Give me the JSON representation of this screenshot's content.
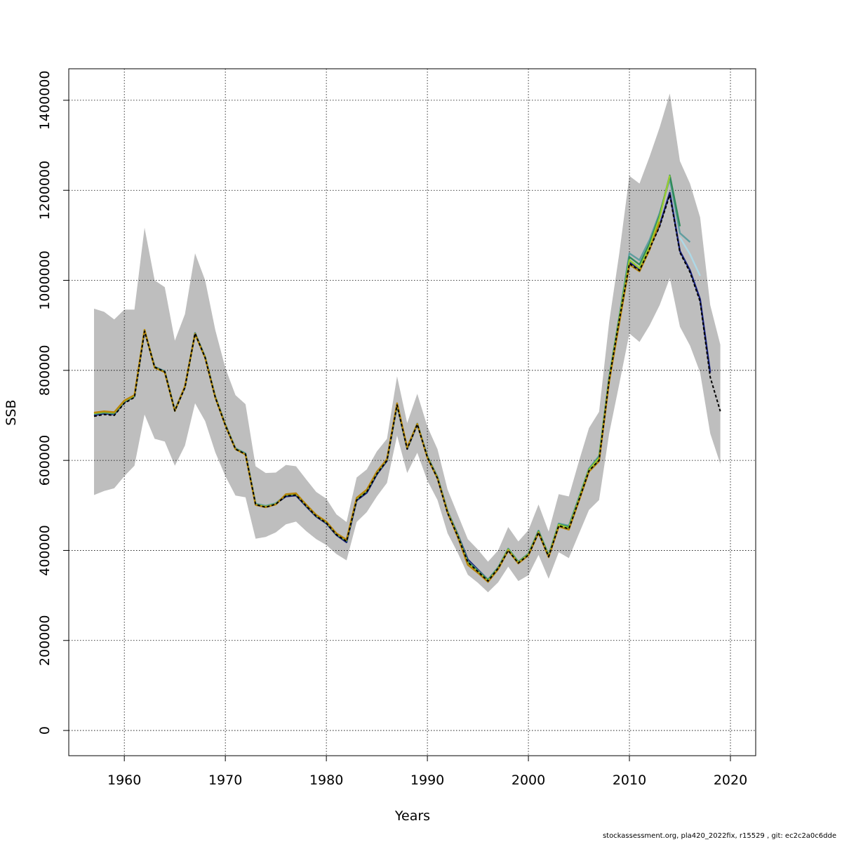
{
  "chart_data": {
    "type": "line",
    "title": "",
    "xlabel": "Years",
    "ylabel": "SSB",
    "xlim": [
      1954.5,
      2022.5
    ],
    "ylim": [
      -56000,
      1470000
    ],
    "x_ticks": [
      1960,
      1970,
      1980,
      1990,
      2000,
      2010,
      2020
    ],
    "y_ticks": [
      0,
      200000,
      400000,
      600000,
      800000,
      1000000,
      1200000,
      1400000
    ],
    "grid": true,
    "band_color": "#bebebe",
    "confidence_band": {
      "x": [
        1957,
        1958,
        1959,
        1960,
        1961,
        1962,
        1963,
        1964,
        1965,
        1966,
        1967,
        1968,
        1969,
        1970,
        1971,
        1972,
        1973,
        1974,
        1975,
        1976,
        1977,
        1978,
        1979,
        1980,
        1981,
        1982,
        1983,
        1984,
        1985,
        1986,
        1987,
        1988,
        1989,
        1990,
        1991,
        1992,
        1993,
        1994,
        1995,
        1996,
        1997,
        1998,
        1999,
        2000,
        2001,
        2002,
        2003,
        2004,
        2005,
        2006,
        2007,
        2008,
        2009,
        2010,
        2011,
        2012,
        2013,
        2014,
        2015,
        2016,
        2017,
        2018,
        2019
      ],
      "lower": [
        523000,
        532000,
        538000,
        565000,
        588000,
        702000,
        648000,
        642000,
        588000,
        633000,
        727000,
        687000,
        618000,
        565000,
        522000,
        518000,
        426000,
        430000,
        440000,
        458000,
        464000,
        443000,
        425000,
        412000,
        392000,
        378000,
        463000,
        485000,
        520000,
        550000,
        655000,
        572000,
        617000,
        555000,
        512000,
        438000,
        395000,
        346000,
        328000,
        307000,
        329000,
        364000,
        332000,
        345000,
        390000,
        337000,
        396000,
        383000,
        437000,
        490000,
        512000,
        660000,
        770000,
        882000,
        863000,
        900000,
        945000,
        1005000,
        897000,
        855000,
        795000,
        660000,
        592000
      ],
      "upper": [
        937000,
        930000,
        913000,
        935000,
        935000,
        1117000,
        1000000,
        985000,
        866000,
        925000,
        1060000,
        1000000,
        890000,
        805000,
        745000,
        725000,
        587000,
        572000,
        573000,
        590000,
        587000,
        558000,
        530000,
        515000,
        480000,
        463000,
        562000,
        580000,
        620000,
        648000,
        787000,
        683000,
        748000,
        675000,
        625000,
        535000,
        480000,
        425000,
        402000,
        375000,
        400000,
        452000,
        420000,
        445000,
        502000,
        442000,
        525000,
        520000,
        598000,
        672000,
        708000,
        908000,
        1060000,
        1232000,
        1215000,
        1275000,
        1340000,
        1415000,
        1265000,
        1215000,
        1140000,
        945000,
        857000
      ]
    },
    "series": [
      {
        "color": "#000000",
        "dashed": true,
        "x": [
          1957,
          1958,
          1959,
          1960,
          1961,
          1962,
          1963,
          1964,
          1965,
          1966,
          1967,
          1968,
          1969,
          1970,
          1971,
          1972,
          1973,
          1974,
          1975,
          1976,
          1977,
          1978,
          1979,
          1980,
          1981,
          1982,
          1983,
          1984,
          1985,
          1986,
          1987,
          1988,
          1989,
          1990,
          1991,
          1992,
          1993,
          1994,
          1995,
          1996,
          1997,
          1998,
          1999,
          2000,
          2001,
          2002,
          2003,
          2004,
          2005,
          2006,
          2007,
          2008,
          2009,
          2010,
          2011,
          2012,
          2013,
          2014,
          2015,
          2016,
          2017,
          2018,
          2019
        ],
        "values": [
          698000,
          702000,
          700000,
          727000,
          740000,
          887000,
          807000,
          797000,
          710000,
          762000,
          882000,
          828000,
          740000,
          678000,
          625000,
          614000,
          502000,
          496000,
          503000,
          521000,
          523000,
          499000,
          476000,
          461000,
          435000,
          420000,
          512000,
          530000,
          570000,
          600000,
          723000,
          625000,
          680000,
          607000,
          560000,
          483000,
          432000,
          374000,
          353000,
          332000,
          360000,
          400000,
          372000,
          390000,
          440000,
          386000,
          455000,
          448000,
          512000,
          577000,
          600000,
          780000,
          912000,
          1037000,
          1022000,
          1070000,
          1120000,
          1190000,
          1062000,
          1018000,
          953000,
          785000,
          709000
        ]
      },
      {
        "color": "#1a237e",
        "dashed": false,
        "x": [
          1957,
          1958,
          1959,
          1960,
          1961,
          1962,
          1963,
          1964,
          1965,
          1966,
          1967,
          1968,
          1969,
          1970,
          1971,
          1972,
          1973,
          1974,
          1975,
          1976,
          1977,
          1978,
          1979,
          1980,
          1981,
          1982,
          1983,
          1984,
          1985,
          1986,
          1987,
          1988,
          1989,
          1990,
          1991,
          1992,
          1993,
          1994,
          1995,
          1996,
          1997,
          1998,
          1999,
          2000,
          2001,
          2002,
          2003,
          2004,
          2005,
          2006,
          2007,
          2008,
          2009,
          2010,
          2011,
          2012,
          2013,
          2014,
          2015,
          2016,
          2017,
          2018
        ],
        "values": [
          700000,
          704000,
          702000,
          729000,
          742000,
          888000,
          808000,
          798000,
          711000,
          763000,
          883000,
          829000,
          741000,
          679000,
          626000,
          615000,
          503000,
          497000,
          504000,
          520000,
          522000,
          498000,
          475000,
          460000,
          434000,
          418000,
          511000,
          528000,
          569000,
          599000,
          723000,
          626000,
          680000,
          609000,
          563000,
          487000,
          436000,
          380000,
          357000,
          335000,
          362000,
          403000,
          374000,
          392000,
          442000,
          388000,
          457000,
          450000,
          514000,
          578000,
          602000,
          782000,
          914000,
          1040000,
          1025000,
          1072000,
          1123000,
          1195000,
          1065000,
          1022000,
          958000,
          795000
        ]
      },
      {
        "color": "#5f9ea0",
        "dashed": false,
        "x": [
          1957,
          1958,
          1959,
          1960,
          1961,
          1962,
          1963,
          1964,
          1965,
          1966,
          1967,
          1968,
          1969,
          1970,
          1971,
          1972,
          1973,
          1974,
          1975,
          1976,
          1977,
          1978,
          1979,
          1980,
          1981,
          1982,
          1983,
          1984,
          1985,
          1986,
          1987,
          1988,
          1989,
          1990,
          1991,
          1992,
          1993,
          1994,
          1995,
          1996,
          1997,
          1998,
          1999,
          2000,
          2001,
          2002,
          2003,
          2004,
          2005,
          2006,
          2007,
          2008,
          2009,
          2010,
          2011,
          2012,
          2013,
          2014,
          2015,
          2016
        ],
        "values": [
          703000,
          706000,
          704000,
          731000,
          743000,
          889000,
          808000,
          798000,
          712000,
          764000,
          883000,
          830000,
          742000,
          680000,
          627000,
          616000,
          504000,
          499000,
          505000,
          523000,
          525000,
          501000,
          478000,
          463000,
          437000,
          422000,
          515000,
          533000,
          573000,
          602000,
          725000,
          628000,
          682000,
          609000,
          563000,
          487000,
          435000,
          376000,
          355000,
          335000,
          362000,
          404000,
          375000,
          393000,
          444000,
          390000,
          460000,
          455000,
          518000,
          582000,
          610000,
          785000,
          920000,
          1060000,
          1045000,
          1090000,
          1150000,
          1225000,
          1105000,
          1085000
        ]
      },
      {
        "color": "#add8e6",
        "dashed": false,
        "x": [
          2015,
          2016,
          2017
        ],
        "values": [
          1095000,
          1058000,
          1010000
        ]
      },
      {
        "color": "#2e8b57",
        "dashed": false,
        "x": [
          1957,
          1958,
          1959,
          1960,
          1961,
          1962,
          1963,
          1964,
          1965,
          1966,
          1967,
          1968,
          1969,
          1970,
          1971,
          1972,
          1973,
          1974,
          1975,
          1976,
          1977,
          1978,
          1979,
          1980,
          1981,
          1982,
          1983,
          1984,
          1985,
          1986,
          1987,
          1988,
          1989,
          1990,
          1991,
          1992,
          1993,
          1994,
          1995,
          1996,
          1997,
          1998,
          1999,
          2000,
          2001,
          2002,
          2003,
          2004,
          2005,
          2006,
          2007,
          2008,
          2009,
          2010,
          2011,
          2012,
          2013,
          2014,
          2015
        ],
        "values": [
          704000,
          707000,
          705000,
          731000,
          743000,
          889000,
          807000,
          797000,
          711000,
          764000,
          882000,
          829000,
          741000,
          679000,
          626000,
          614000,
          502000,
          497000,
          503000,
          523000,
          525000,
          500000,
          477000,
          462000,
          436000,
          421000,
          514000,
          532000,
          572000,
          601000,
          724000,
          627000,
          681000,
          608000,
          562000,
          486000,
          434000,
          374000,
          354000,
          334000,
          361000,
          403000,
          374000,
          392000,
          443000,
          389000,
          458000,
          452000,
          516000,
          580000,
          607000,
          783000,
          917000,
          1052000,
          1035000,
          1082000,
          1145000,
          1233000,
          1120000
        ]
      },
      {
        "color": "#9acd32",
        "dashed": false,
        "x": [
          1957,
          1958,
          1959,
          1960,
          1961,
          1962,
          1963,
          1964,
          1965,
          1966,
          1967,
          1968,
          1969,
          1970,
          1971,
          1972,
          1973,
          1974,
          1975,
          1976,
          1977,
          1978,
          1979,
          1980,
          1981,
          1982,
          1983,
          1984,
          1985,
          1986,
          1987,
          1988,
          1989,
          1990,
          1991,
          1992,
          1993,
          1994,
          1995,
          1996,
          1997,
          1998,
          1999,
          2000,
          2001,
          2002,
          2003,
          2004,
          2005,
          2006,
          2007,
          2008,
          2009,
          2010,
          2011,
          2012,
          2013,
          2014
        ],
        "values": [
          705000,
          708000,
          706000,
          732000,
          744000,
          890000,
          806000,
          796000,
          710000,
          764000,
          881000,
          828000,
          740000,
          678000,
          625000,
          613000,
          502000,
          497000,
          503000,
          524000,
          526000,
          501000,
          478000,
          463000,
          437000,
          423000,
          516000,
          534000,
          574000,
          602000,
          726000,
          628000,
          681000,
          607000,
          561000,
          485000,
          432000,
          371000,
          352000,
          332000,
          360000,
          402000,
          373000,
          391000,
          441000,
          387000,
          457000,
          450000,
          514000,
          579000,
          605000,
          780000,
          914000,
          1045000,
          1027000,
          1075000,
          1140000,
          1233000
        ]
      },
      {
        "color": "#b8860b",
        "dashed": false,
        "x": [
          1957,
          1958,
          1959,
          1960,
          1961,
          1962,
          1963,
          1964,
          1965,
          1966,
          1967,
          1968,
          1969,
          1970,
          1971,
          1972,
          1973,
          1974,
          1975,
          1976,
          1977,
          1978,
          1979,
          1980,
          1981,
          1982,
          1983,
          1984,
          1985,
          1986,
          1987,
          1988,
          1989,
          1990,
          1991,
          1992,
          1993,
          1994,
          1995,
          1996,
          1997,
          1998,
          1999,
          2000,
          2001,
          2002,
          2003,
          2004,
          2005,
          2006,
          2007,
          2008,
          2009,
          2010,
          2011,
          2012,
          2013
        ],
        "values": [
          706000,
          709000,
          707000,
          733000,
          745000,
          890000,
          806000,
          796000,
          710000,
          765000,
          881000,
          828000,
          740000,
          678000,
          625000,
          613000,
          501000,
          496000,
          502000,
          525000,
          527000,
          502000,
          479000,
          464000,
          438000,
          424000,
          517000,
          535000,
          575000,
          603000,
          727000,
          629000,
          681000,
          606000,
          560000,
          484000,
          430000,
          368000,
          350000,
          330000,
          358000,
          400000,
          371000,
          389000,
          439000,
          385000,
          453000,
          446000,
          510000,
          575000,
          598000,
          775000,
          905000,
          1035000,
          1020000,
          1068000,
          1130000
        ]
      }
    ]
  },
  "footer": "stockassessment.org, pla420_2022fix, r15529 , git: ec2c2a0c6dde"
}
